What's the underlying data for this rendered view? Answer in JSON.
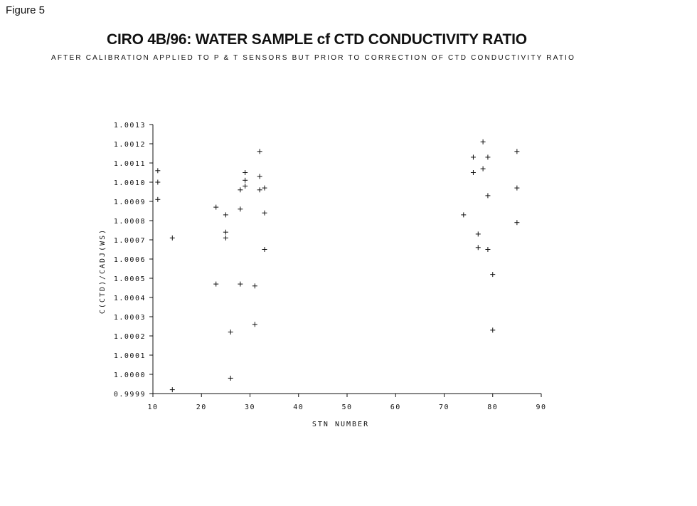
{
  "figure_label": "Figure 5",
  "chart_data": {
    "type": "scatter",
    "title": "CIRO 4B/96: WATER SAMPLE cf CTD CONDUCTIVITY RATIO",
    "subtitle": "AFTER CALIBRATION APPLIED TO P & T SENSORS BUT PRIOR TO CORRECTION OF CTD CONDUCTIVITY RATIO",
    "xlabel": "STN NUMBER",
    "ylabel": "C(CTD)/CADJ(WS)",
    "xlim": [
      10,
      90
    ],
    "ylim": [
      0.9999,
      1.0013
    ],
    "x_ticks": [
      10,
      20,
      30,
      40,
      50,
      60,
      70,
      80,
      90
    ],
    "x_tick_labels": [
      "10",
      "20",
      "30",
      "40",
      "50",
      "60",
      "70",
      "80",
      "90"
    ],
    "y_ticks": [
      0.9999,
      1.0,
      1.0001,
      1.0002,
      1.0003,
      1.0004,
      1.0005,
      1.0006,
      1.0007,
      1.0008,
      1.0009,
      1.001,
      1.0011,
      1.0012,
      1.0013
    ],
    "y_tick_labels": [
      "0.9999",
      "1.0000",
      "1.0001",
      "1.0002",
      "1.0003",
      "1.0004",
      "1.0005",
      "1.0006",
      "1.0007",
      "1.0008",
      "1.0009",
      "1.0010",
      "1.0011",
      "1.0012",
      "1.0013"
    ],
    "marker": "+",
    "points": [
      {
        "x": 11,
        "y": 1.00106
      },
      {
        "x": 11,
        "y": 1.001
      },
      {
        "x": 11,
        "y": 1.00091
      },
      {
        "x": 14,
        "y": 1.00071
      },
      {
        "x": 14,
        "y": 0.99992
      },
      {
        "x": 23,
        "y": 1.00087
      },
      {
        "x": 23,
        "y": 1.00047
      },
      {
        "x": 25,
        "y": 1.00083
      },
      {
        "x": 25,
        "y": 1.00074
      },
      {
        "x": 25,
        "y": 1.00071
      },
      {
        "x": 26,
        "y": 1.00022
      },
      {
        "x": 26,
        "y": 0.99998
      },
      {
        "x": 28,
        "y": 1.00096
      },
      {
        "x": 28,
        "y": 1.00086
      },
      {
        "x": 28,
        "y": 1.00047
      },
      {
        "x": 29,
        "y": 1.00105
      },
      {
        "x": 29,
        "y": 1.00101
      },
      {
        "x": 29,
        "y": 1.00098
      },
      {
        "x": 31,
        "y": 1.00046
      },
      {
        "x": 31,
        "y": 1.00026
      },
      {
        "x": 32,
        "y": 1.00116
      },
      {
        "x": 32,
        "y": 1.00103
      },
      {
        "x": 32,
        "y": 1.00096
      },
      {
        "x": 33,
        "y": 1.00097
      },
      {
        "x": 33,
        "y": 1.00084
      },
      {
        "x": 33,
        "y": 1.00065
      },
      {
        "x": 74,
        "y": 1.00083
      },
      {
        "x": 76,
        "y": 1.00113
      },
      {
        "x": 76,
        "y": 1.00105
      },
      {
        "x": 77,
        "y": 1.00073
      },
      {
        "x": 77,
        "y": 1.00066
      },
      {
        "x": 78,
        "y": 1.00121
      },
      {
        "x": 78,
        "y": 1.00107
      },
      {
        "x": 79,
        "y": 1.00113
      },
      {
        "x": 79,
        "y": 1.00093
      },
      {
        "x": 79,
        "y": 1.00065
      },
      {
        "x": 80,
        "y": 1.00052
      },
      {
        "x": 80,
        "y": 1.00023
      },
      {
        "x": 85,
        "y": 1.00116
      },
      {
        "x": 85,
        "y": 1.00097
      },
      {
        "x": 85,
        "y": 1.00079
      }
    ],
    "grid": false,
    "legend": "none"
  }
}
